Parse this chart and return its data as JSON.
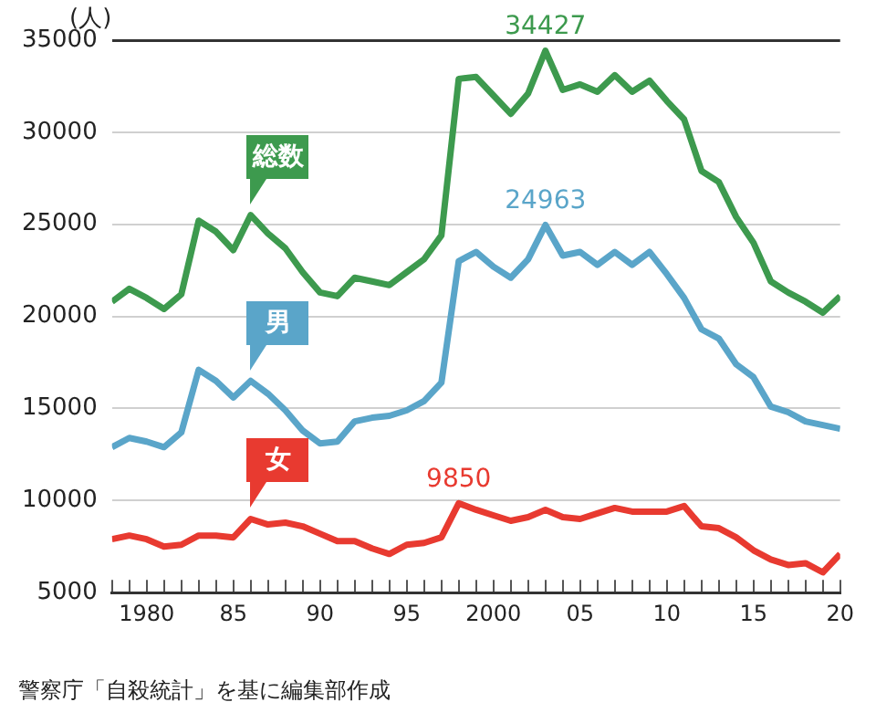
{
  "chart_data": {
    "type": "line",
    "ylabel": "(人)",
    "x": [
      1978,
      1979,
      1980,
      1981,
      1982,
      1983,
      1984,
      1985,
      1986,
      1987,
      1988,
      1989,
      1990,
      1991,
      1992,
      1993,
      1994,
      1995,
      1996,
      1997,
      1998,
      1999,
      2000,
      2001,
      2002,
      2003,
      2004,
      2005,
      2006,
      2007,
      2008,
      2009,
      2010,
      2011,
      2012,
      2013,
      2014,
      2015,
      2016,
      2017,
      2018,
      2019,
      2020
    ],
    "series": [
      {
        "name": "総数",
        "color": "#3d9a4e",
        "values": [
          20800,
          21500,
          21000,
          20400,
          21200,
          25200,
          24600,
          23600,
          25500,
          24500,
          23700,
          22400,
          21300,
          21100,
          22100,
          21900,
          21700,
          22400,
          23100,
          24400,
          32900,
          33000,
          32000,
          31000,
          32100,
          34427,
          32300,
          32600,
          32200,
          33100,
          32200,
          32800,
          31700,
          30700,
          27900,
          27300,
          25400,
          24000,
          21900,
          21300,
          20800,
          20200,
          21100
        ],
        "value_labels": [
          null,
          null,
          null,
          null,
          null,
          null,
          null,
          null,
          null,
          null,
          null,
          null,
          null,
          null,
          null,
          null,
          null,
          null,
          null,
          null,
          null,
          null,
          null,
          null,
          null,
          "34427",
          null,
          null,
          null,
          null,
          null,
          null,
          null,
          null,
          null,
          null,
          null,
          null,
          null,
          null,
          null,
          null,
          null
        ]
      },
      {
        "name": "男",
        "color": "#5aa5c9",
        "values": [
          12900,
          13400,
          13200,
          12900,
          13700,
          17100,
          16500,
          15600,
          16500,
          15800,
          14900,
          13800,
          13100,
          13200,
          14300,
          14500,
          14600,
          14900,
          15400,
          16400,
          23000,
          23500,
          22700,
          22100,
          23100,
          24963,
          23300,
          23500,
          22800,
          23500,
          22800,
          23500,
          22300,
          21000,
          19300,
          18800,
          17400,
          16700,
          15100,
          14800,
          14300,
          14100,
          13900
        ],
        "value_labels": [
          null,
          null,
          null,
          null,
          null,
          null,
          null,
          null,
          null,
          null,
          null,
          null,
          null,
          null,
          null,
          null,
          null,
          null,
          null,
          null,
          null,
          null,
          null,
          null,
          null,
          "24963",
          null,
          null,
          null,
          null,
          null,
          null,
          null,
          null,
          null,
          null,
          null,
          null,
          null,
          null,
          null,
          null,
          null
        ]
      },
      {
        "name": "女",
        "color": "#e83a30",
        "values": [
          7900,
          8100,
          7900,
          7500,
          7600,
          8100,
          8100,
          8000,
          9000,
          8700,
          8800,
          8600,
          8200,
          7800,
          7800,
          7400,
          7100,
          7600,
          7700,
          8000,
          9850,
          9500,
          9200,
          8900,
          9100,
          9500,
          9100,
          9000,
          9300,
          9600,
          9400,
          9400,
          9400,
          9700,
          8600,
          8500,
          8000,
          7300,
          6800,
          6500,
          6600,
          6100,
          7100
        ],
        "value_labels": [
          null,
          null,
          null,
          null,
          null,
          null,
          null,
          null,
          null,
          null,
          null,
          null,
          null,
          null,
          null,
          null,
          null,
          null,
          null,
          null,
          "9850",
          null,
          null,
          null,
          null,
          null,
          null,
          null,
          null,
          null,
          null,
          null,
          null,
          null,
          null,
          null,
          null,
          null,
          null,
          null,
          null,
          null,
          null
        ]
      }
    ],
    "xlim": [
      1978,
      2020
    ],
    "xticks": [
      {
        "value": 1978,
        "label": null
      },
      {
        "value": 1979,
        "label": null
      },
      1980,
      {
        "value": 1981,
        "label": null
      },
      {
        "value": 1982,
        "label": null
      },
      {
        "value": 1983,
        "label": null
      },
      {
        "value": 1984,
        "label": null
      },
      {
        "value": 1985,
        "label": "85"
      },
      {
        "value": 1986,
        "label": null
      },
      {
        "value": 1987,
        "label": null
      },
      {
        "value": 1988,
        "label": null
      },
      {
        "value": 1989,
        "label": null
      },
      {
        "value": 1990,
        "label": "90"
      },
      {
        "value": 1991,
        "label": null
      },
      {
        "value": 1992,
        "label": null
      },
      {
        "value": 1993,
        "label": null
      },
      {
        "value": 1994,
        "label": null
      },
      {
        "value": 1995,
        "label": "95"
      },
      {
        "value": 1996,
        "label": null
      },
      {
        "value": 1997,
        "label": null
      },
      {
        "value": 1998,
        "label": null
      },
      {
        "value": 1999,
        "label": null
      },
      2000,
      {
        "value": 2001,
        "label": null
      },
      {
        "value": 2002,
        "label": null
      },
      {
        "value": 2003,
        "label": null
      },
      {
        "value": 2004,
        "label": null
      },
      {
        "value": 2005,
        "label": "05"
      },
      {
        "value": 2006,
        "label": null
      },
      {
        "value": 2007,
        "label": null
      },
      {
        "value": 2008,
        "label": null
      },
      {
        "value": 2009,
        "label": null
      },
      {
        "value": 2010,
        "label": "10"
      },
      {
        "value": 2011,
        "label": null
      },
      {
        "value": 2012,
        "label": null
      },
      {
        "value": 2013,
        "label": null
      },
      {
        "value": 2014,
        "label": null
      },
      {
        "value": 2015,
        "label": "15"
      },
      {
        "value": 2016,
        "label": null
      },
      {
        "value": 2017,
        "label": null
      },
      {
        "value": 2018,
        "label": null
      },
      {
        "value": 2019,
        "label": null
      },
      {
        "value": 2020,
        "label": "20"
      }
    ],
    "ylim": [
      5000,
      35000
    ],
    "yticks": [
      5000,
      10000,
      15000,
      20000,
      25000,
      30000,
      35000
    ],
    "grid": "y",
    "legend": false,
    "marker": "none",
    "line_style": "solid",
    "annotations": [
      "警察庁「自殺統計」を基に編集部作成"
    ]
  }
}
